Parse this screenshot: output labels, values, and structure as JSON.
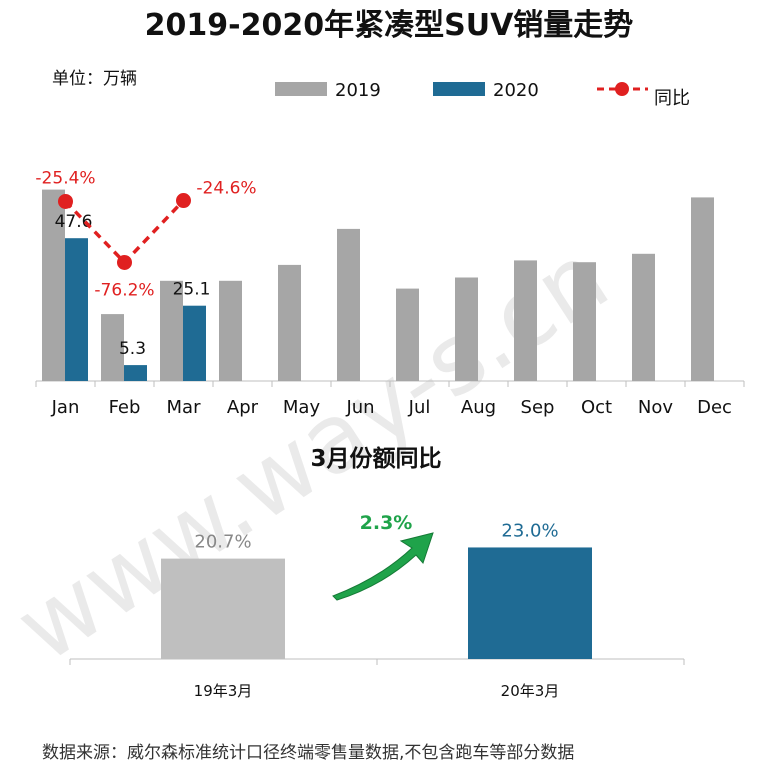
{
  "chart_data": [
    {
      "type": "bar",
      "title": "2019-2020年紧凑型SUV销量走势",
      "unit_label": "单位：万辆",
      "categories": [
        "Jan",
        "Feb",
        "Mar",
        "Apr",
        "May",
        "Jun",
        "Jul",
        "Aug",
        "Sep",
        "Oct",
        "Nov",
        "Dec"
      ],
      "series": [
        {
          "name": "2019",
          "color": "#a6a6a6",
          "values": [
            63.8,
            22.3,
            33.4,
            33.4,
            38.7,
            50.7,
            30.8,
            34.5,
            40.2,
            39.6,
            42.4,
            61.2
          ]
        },
        {
          "name": "2020",
          "color": "#1f6b94",
          "values": [
            47.6,
            5.3,
            25.1,
            null,
            null,
            null,
            null,
            null,
            null,
            null,
            null,
            null
          ],
          "labels": [
            "47.6",
            "5.3",
            "25.1"
          ]
        }
      ],
      "line_series": {
        "name": "同比",
        "color": "#e02020",
        "categories": [
          "Jan",
          "Feb",
          "Mar"
        ],
        "values": [
          -25.4,
          -76.2,
          -24.6
        ],
        "labels": [
          "-25.4%",
          "-76.2%",
          "-24.6%"
        ]
      },
      "legend_position": "top",
      "grid": false
    },
    {
      "type": "bar",
      "title": "3月份额同比",
      "categories": [
        "19年3月",
        "20年3月"
      ],
      "values": [
        20.7,
        23.0
      ],
      "labels": [
        "20.7%",
        "23.0%"
      ],
      "colors": [
        "#bfbfbf",
        "#1f6b94"
      ],
      "label_colors": [
        "#888888",
        "#1f6b94"
      ],
      "change_label": "2.3%",
      "change_color": "#1fa34a"
    }
  ],
  "footer": {
    "source": "数据来源：威尔森标准统计口径终端零售量数据,不包含跑车等部分数据"
  },
  "watermark": {
    "text": "www.way-s.cn"
  }
}
